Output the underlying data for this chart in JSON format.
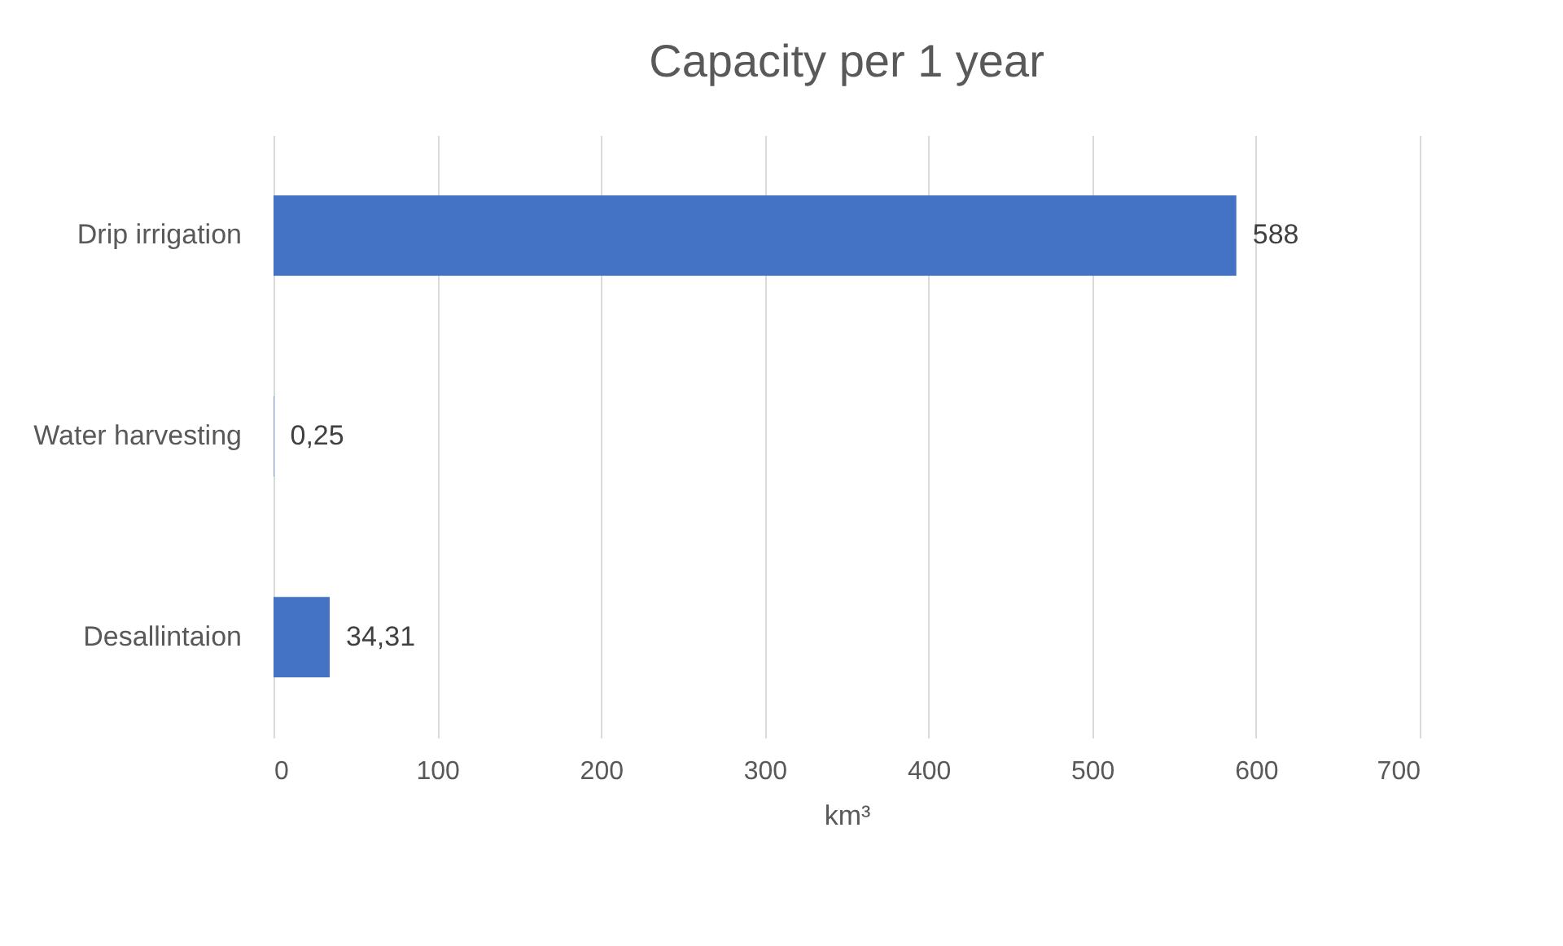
{
  "chart_data": {
    "type": "bar",
    "title": "Capacity per 1 year",
    "orientation": "horizontal",
    "categories": [
      "Drip irrigation",
      "Water harvesting",
      "Desallintaion"
    ],
    "values": [
      588,
      0.25,
      34.31
    ],
    "value_labels": [
      "588",
      "0,25",
      "34,31"
    ],
    "color": "#4472c4",
    "xlim": [
      0,
      700
    ],
    "xticks": [
      0,
      100,
      200,
      300,
      400,
      500,
      600,
      700
    ],
    "xlabel": "km³",
    "grid": "x"
  }
}
